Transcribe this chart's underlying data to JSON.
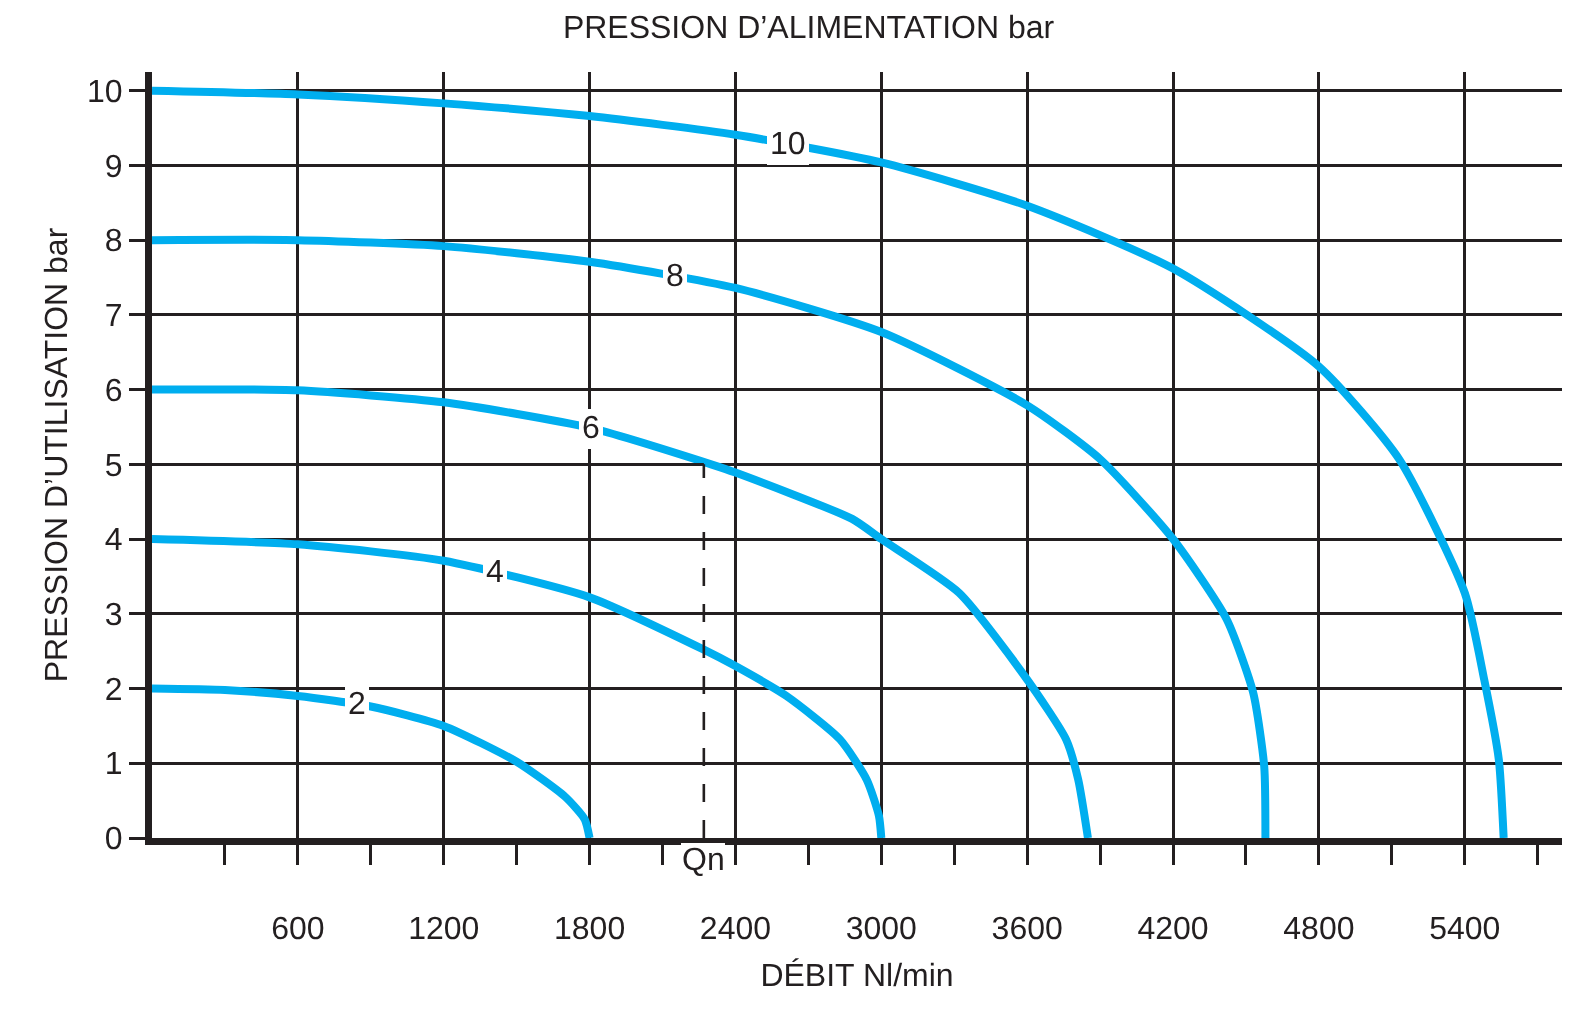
{
  "chart_data": {
    "type": "line",
    "title": "PRESSION D’ALIMENTATION bar",
    "xlabel": "DÉBIT Nl/min",
    "ylabel": "PRESSION D’UTILISATION bar",
    "xlim": [
      0,
      5800
    ],
    "ylim": [
      0,
      10.25
    ],
    "xticks": [
      {
        "value": 300,
        "label": null
      },
      600,
      {
        "value": 900,
        "label": null
      },
      1200,
      {
        "value": 1500,
        "label": null
      },
      1800,
      {
        "value": 2100,
        "label": null
      },
      2400,
      {
        "value": 2700,
        "label": null
      },
      3000,
      {
        "value": 3300,
        "label": null
      },
      3600,
      {
        "value": 3900,
        "label": null
      },
      4200,
      {
        "value": 4500,
        "label": null
      },
      4800,
      {
        "value": 5100,
        "label": null
      },
      5400,
      {
        "value": 5700,
        "label": null
      }
    ],
    "yticks": [
      0,
      1,
      2,
      3,
      4,
      5,
      6,
      7,
      8,
      9,
      10
    ],
    "grid": true,
    "legend": false,
    "marker": "none",
    "line_style": "solid",
    "ref_lines": [
      {
        "axis": "y",
        "value": 5,
        "line_style": "dashed",
        "color": "#231f20"
      },
      {
        "axis": "x",
        "value": 2270,
        "label": "Qn",
        "line_style": "dashed",
        "color": "#231f20"
      }
    ],
    "series": [
      {
        "name": "2",
        "color": "#00aeef",
        "x": [
          0,
          300,
          600,
          900,
          1200,
          1500,
          1700,
          1780,
          1800
        ],
        "values": [
          2,
          1.98,
          1.9,
          1.76,
          1.5,
          1.02,
          0.55,
          0.25,
          0
        ]
      },
      {
        "name": "4",
        "color": "#00aeef",
        "x": [
          0,
          600,
          1200,
          1800,
          2270,
          2400,
          2610,
          2830,
          2940,
          2990,
          3000
        ],
        "values": [
          4,
          3.93,
          3.71,
          3.22,
          2.52,
          2.3,
          1.9,
          1.32,
          0.78,
          0.3,
          0
        ]
      },
      {
        "name": "6",
        "color": "#00aeef",
        "x": [
          0,
          600,
          1200,
          1800,
          2300,
          2400,
          2880,
          3000,
          3320,
          3600,
          3760,
          3810,
          3850
        ],
        "values": [
          6,
          5.99,
          5.83,
          5.49,
          5.0,
          4.89,
          4.27,
          4.0,
          3.28,
          2.12,
          1.32,
          0.78,
          0
        ]
      },
      {
        "name": "8",
        "color": "#00aeef",
        "x": [
          0,
          600,
          1200,
          1800,
          2400,
          3000,
          3600,
          3900,
          4200,
          4420,
          4530,
          4575,
          4580
        ],
        "values": [
          8,
          8.0,
          7.92,
          7.71,
          7.36,
          6.77,
          5.79,
          5.07,
          4.0,
          2.93,
          1.94,
          0.96,
          0
        ]
      },
      {
        "name": "10",
        "color": "#00aeef",
        "x": [
          0,
          600,
          1200,
          1800,
          2400,
          3000,
          3600,
          4200,
          4800,
          5130,
          5400,
          5480,
          5540,
          5560
        ],
        "values": [
          10,
          9.95,
          9.83,
          9.66,
          9.41,
          9.04,
          8.46,
          7.62,
          6.31,
          5.07,
          3.28,
          2.12,
          1.05,
          0
        ]
      }
    ]
  }
}
